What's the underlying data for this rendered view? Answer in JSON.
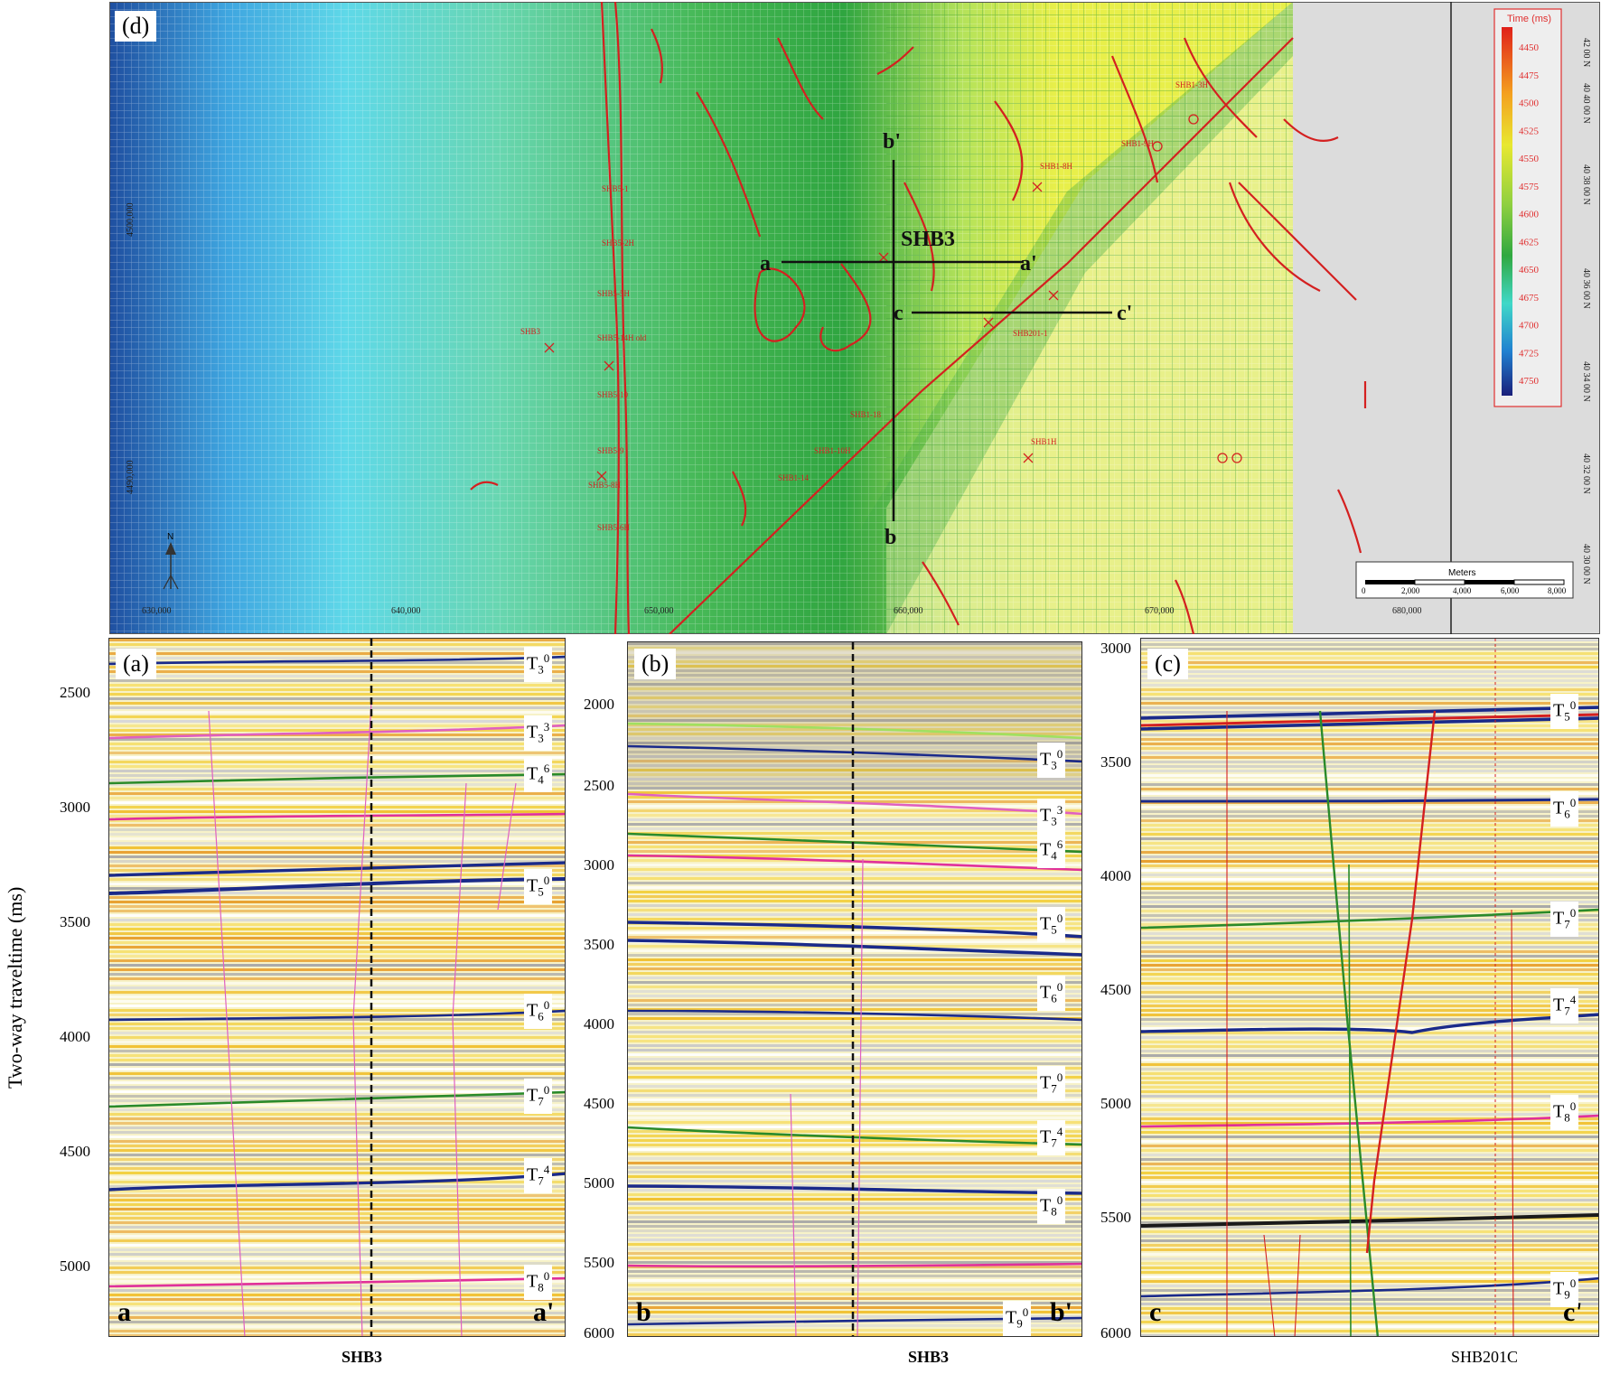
{
  "map": {
    "label": "(d)",
    "profile_labels": {
      "a": "a",
      "a_prime": "a'",
      "b": "b",
      "b_prime": "b'",
      "c": "c",
      "c_prime": "c'"
    },
    "well": "SHB3",
    "easting_ticks": [
      "630,000",
      "640,000",
      "650,000",
      "660,000",
      "670,000",
      "680,000"
    ],
    "northing_left": [
      "4500,000",
      "4490,000"
    ],
    "lat_ticks": [
      "42 00 N",
      "40 40 00 N",
      "40 38 00 N",
      "40 36 00 N",
      "40 34 00 N",
      "40 32 00 N",
      "40 30 00 N"
    ],
    "legend": {
      "title": "Time (ms)",
      "values": [
        "4450",
        "4475",
        "4500",
        "4525",
        "4550",
        "4575",
        "4600",
        "4625",
        "4650",
        "4675",
        "4700",
        "4725",
        "4750"
      ]
    },
    "scalebar": {
      "title": "Meters",
      "ticks": [
        "0",
        "2,000",
        "4,000",
        "6,000",
        "8,000"
      ]
    },
    "north": "N",
    "well_labels": [
      "SHB3",
      "SHB1-3H",
      "SHB201-1",
      "SHB5-5H",
      "SHB5-10",
      "SHB5-14H old",
      "SHB1-1H",
      "SHB1-2H",
      "SHB1-4H",
      "SHB1-8H",
      "SHB1-9H",
      "SHB1-10H",
      "SHB1-14",
      "SHB1-18",
      "SHB1-19",
      "SHB1H",
      "SHB5-9",
      "SHB5-8H",
      "SHB5-6H",
      "SHB5-2H",
      "SHB5-1"
    ]
  },
  "sections": {
    "ylabel": "Two-way traveltime (ms)",
    "a": {
      "label": "(a)",
      "left": "a",
      "right": "a'",
      "caption": "SHB3",
      "ticks": [
        "2500",
        "3000",
        "3500",
        "4000",
        "4500",
        "5000"
      ],
      "horizons": [
        {
          "name": "T",
          "sub": "3",
          "sup": "0"
        },
        {
          "name": "T",
          "sub": "3",
          "sup": "3"
        },
        {
          "name": "T",
          "sub": "4",
          "sup": "6"
        },
        {
          "name": "T",
          "sub": "5",
          "sup": "0"
        },
        {
          "name": "T",
          "sub": "6",
          "sup": "0"
        },
        {
          "name": "T",
          "sub": "7",
          "sup": "0"
        },
        {
          "name": "T",
          "sub": "7",
          "sup": "4"
        },
        {
          "name": "T",
          "sub": "8",
          "sup": "0"
        }
      ]
    },
    "b": {
      "label": "(b)",
      "left": "b",
      "right": "b'",
      "caption": "SHB3",
      "ticks": [
        "2000",
        "2500",
        "3000",
        "3500",
        "4000",
        "4500",
        "5000",
        "5500",
        "6000"
      ],
      "horizons": [
        {
          "name": "T",
          "sub": "3",
          "sup": "0"
        },
        {
          "name": "T",
          "sub": "3",
          "sup": "3"
        },
        {
          "name": "T",
          "sub": "4",
          "sup": "6"
        },
        {
          "name": "T",
          "sub": "5",
          "sup": "0"
        },
        {
          "name": "T",
          "sub": "6",
          "sup": "0"
        },
        {
          "name": "T",
          "sub": "7",
          "sup": "0"
        },
        {
          "name": "T",
          "sub": "7",
          "sup": "4"
        },
        {
          "name": "T",
          "sub": "8",
          "sup": "0"
        },
        {
          "name": "T",
          "sub": "9",
          "sup": "0"
        }
      ]
    },
    "c": {
      "label": "(c)",
      "left": "c",
      "right": "c'",
      "caption": "SHB201C",
      "ticks": [
        "3000",
        "3500",
        "4000",
        "4500",
        "5000",
        "5500",
        "6000"
      ],
      "horizons": [
        {
          "name": "T",
          "sub": "5",
          "sup": "0"
        },
        {
          "name": "T",
          "sub": "6",
          "sup": "0"
        },
        {
          "name": "T",
          "sub": "7",
          "sup": "0"
        },
        {
          "name": "T",
          "sub": "7",
          "sup": "4"
        },
        {
          "name": "T",
          "sub": "8",
          "sup": "0"
        },
        {
          "name": "T",
          "sub": "9",
          "sup": "0"
        }
      ]
    }
  },
  "colors": {
    "fault": "#d42020",
    "horizon_blue": "#1a2a8a",
    "horizon_green": "#2a8a2a",
    "horizon_magenta": "#e0309a",
    "horizon_pink": "#e060c0"
  }
}
